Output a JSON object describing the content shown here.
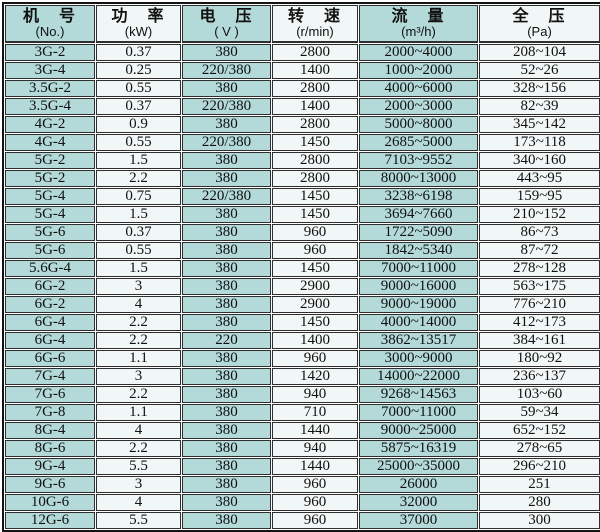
{
  "table": {
    "columns": [
      {
        "title": "机　号",
        "unit": "(No.)"
      },
      {
        "title": "功　率",
        "unit": "(kW)"
      },
      {
        "title": "电　压",
        "unit": "( V )"
      },
      {
        "title": "转　速",
        "unit": "(r/min)"
      },
      {
        "title": "流　量",
        "unit": "(m³/h)"
      },
      {
        "title": "全　压",
        "unit": "(Pa)"
      }
    ],
    "rows": [
      [
        "3G-2",
        "0.37",
        "380",
        "2800",
        "2000~4000",
        "208~104"
      ],
      [
        "3G-4",
        "0.25",
        "220/380",
        "1400",
        "1000~2000",
        "52~26"
      ],
      [
        "3.5G-2",
        "0.55",
        "380",
        "2800",
        "4000~6000",
        "328~156"
      ],
      [
        "3.5G-4",
        "0.37",
        "220/380",
        "1400",
        "2000~3000",
        "82~39"
      ],
      [
        "4G-2",
        "0.9",
        "380",
        "2800",
        "5000~8000",
        "345~142"
      ],
      [
        "4G-4",
        "0.55",
        "220/380",
        "1450",
        "2685~5000",
        "173~118"
      ],
      [
        "5G-2",
        "1.5",
        "380",
        "2800",
        "7103~9552",
        "340~160"
      ],
      [
        "5G-2",
        "2.2",
        "380",
        "2800",
        "8000~13000",
        "443~95"
      ],
      [
        "5G-4",
        "0.75",
        "220/380",
        "1450",
        "3238~6198",
        "159~95"
      ],
      [
        "5G-4",
        "1.5",
        "380",
        "1450",
        "3694~7660",
        "210~152"
      ],
      [
        "5G-6",
        "0.37",
        "380",
        "960",
        "1722~5090",
        "86~73"
      ],
      [
        "5G-6",
        "0.55",
        "380",
        "960",
        "1842~5340",
        "87~72"
      ],
      [
        "5.6G-4",
        "1.5",
        "380",
        "1450",
        "7000~11000",
        "278~128"
      ],
      [
        "6G-2",
        "3",
        "380",
        "2900",
        "9000~16000",
        "563~175"
      ],
      [
        "6G-2",
        "4",
        "380",
        "2900",
        "9000~19000",
        "776~210"
      ],
      [
        "6G-4",
        "2.2",
        "380",
        "1450",
        "4000~14000",
        "412~173"
      ],
      [
        "6G-4",
        "2.2",
        "220",
        "1400",
        "3862~13517",
        "384~161"
      ],
      [
        "6G-6",
        "1.1",
        "380",
        "960",
        "3000~9000",
        "180~92"
      ],
      [
        "7G-4",
        "3",
        "380",
        "1420",
        "14000~22000",
        "236~137"
      ],
      [
        "7G-6",
        "2.2",
        "380",
        "940",
        "9268~14563",
        "103~60"
      ],
      [
        "7G-8",
        "1.1",
        "380",
        "710",
        "7000~11000",
        "59~34"
      ],
      [
        "8G-4",
        "4",
        "380",
        "1440",
        "9000~25000",
        "652~152"
      ],
      [
        "8G-6",
        "2.2",
        "380",
        "940",
        "5875~16319",
        "278~65"
      ],
      [
        "9G-4",
        "5.5",
        "380",
        "1440",
        "25000~35000",
        "296~210"
      ],
      [
        "9G-6",
        "3",
        "380",
        "960",
        "26000",
        "251"
      ],
      [
        "10G-6",
        "4",
        "380",
        "960",
        "32000",
        "280"
      ],
      [
        "12G-6",
        "5.5",
        "380",
        "960",
        "37000",
        "300"
      ]
    ]
  },
  "colors": {
    "teal_cell": "#b3d9d8",
    "light_cell": "#f0f7f6",
    "grid_line": "#2f2f2f",
    "outer_border": "#141414",
    "text": "#111111"
  }
}
